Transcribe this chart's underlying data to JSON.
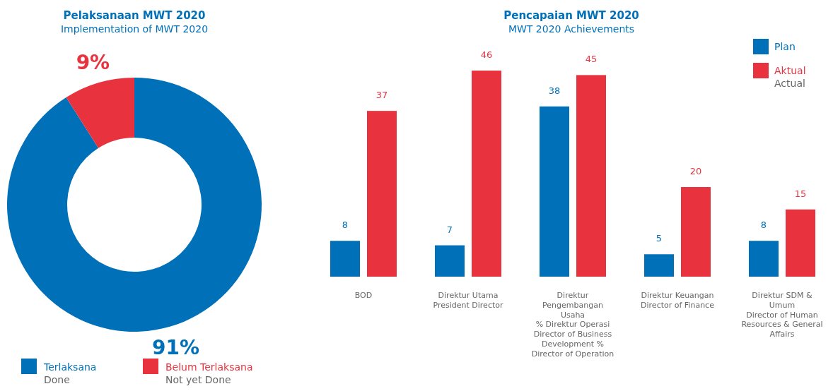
{
  "chart_data": [
    {
      "type": "donut",
      "title": "Pelaksanaan MWT 2020",
      "subtitle": "Implementation of MWT 2020",
      "categories": [
        "Terlaksana\nDone",
        "Belum Terlaksana\nNot yet Done"
      ],
      "values": [
        91,
        9
      ],
      "colors": [
        "#0070b8",
        "#e8333f"
      ],
      "value_labels": [
        "91%",
        "9%"
      ],
      "legend": "bottom"
    },
    {
      "type": "bar",
      "title": "Pencapaian MWT 2020",
      "subtitle": "MWT 2020 Achievements",
      "categories": [
        "BOD",
        "Direktur Utama\nPresident Director",
        "Direktur\nPengembangan\nUsaha\n% Direktur Operasi\nDirector of Business\nDevelopment %\nDirector of Operation",
        "Direktur Keuangan\nDirector of Finance",
        "Direktur SDM &\nUmum\nDirector of Human\nResources & General\nAffairs"
      ],
      "series": [
        {
          "name": "Plan",
          "color": "#0070b8",
          "values": [
            8,
            7,
            38,
            5,
            8
          ]
        },
        {
          "name": "Aktual\nActual",
          "color": "#e8333f",
          "values": [
            37,
            46,
            45,
            20,
            15
          ]
        }
      ],
      "data_labels": true,
      "legend": "top right"
    }
  ]
}
